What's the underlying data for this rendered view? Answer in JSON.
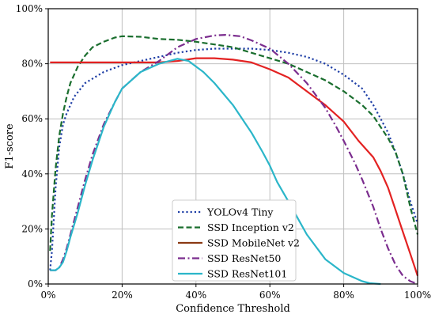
{
  "chart_data": {
    "type": "line",
    "title": "",
    "xlabel": "Confidence Threshold",
    "ylabel": "F1-score",
    "xlim": [
      0,
      100
    ],
    "ylim": [
      0,
      100
    ],
    "x_tick_values": [
      0,
      20,
      40,
      60,
      80,
      100
    ],
    "x_tick_labels": [
      "0%",
      "20%",
      "40%",
      "60%",
      "80%",
      "100%"
    ],
    "y_tick_values": [
      0,
      20,
      40,
      60,
      80,
      100
    ],
    "y_tick_labels": [
      "0%",
      "20%",
      "40%",
      "60%",
      "80%",
      "100%"
    ],
    "grid": true,
    "legend_position": "bottom-center",
    "series": [
      {
        "name": "YOLOv4 Tiny",
        "color": "#1f3fa6",
        "style": "dotted",
        "x": [
          0.5,
          1,
          2,
          3,
          4,
          5,
          7,
          10,
          15,
          20,
          25,
          30,
          35,
          40,
          45,
          50,
          55,
          60,
          65,
          70,
          75,
          80,
          85,
          88,
          90,
          92,
          94,
          96,
          98,
          100
        ],
        "y": [
          5,
          12,
          35,
          50,
          58,
          62,
          68,
          73,
          77,
          79.5,
          81,
          82.5,
          84,
          85,
          85.5,
          85.5,
          85.5,
          85,
          84,
          82.5,
          80,
          76,
          71,
          65,
          60,
          55,
          48,
          40,
          30,
          22
        ]
      },
      {
        "name": "SSD Inception v2",
        "color": "#1a6e2e",
        "style": "dashed",
        "x": [
          0.5,
          1,
          2,
          3,
          4,
          5,
          6,
          8,
          10,
          12,
          15,
          18,
          20,
          25,
          30,
          35,
          40,
          45,
          50,
          55,
          60,
          65,
          70,
          75,
          80,
          85,
          88,
          90,
          92,
          94,
          96,
          98,
          100
        ],
        "y": [
          12,
          25,
          42,
          54,
          62,
          68,
          73,
          79,
          83,
          86,
          88,
          89.5,
          90,
          89.8,
          89,
          88.7,
          88,
          87,
          86,
          84,
          82,
          80,
          77,
          74,
          70,
          65,
          61,
          57,
          53,
          48,
          40,
          28,
          18
        ]
      },
      {
        "name": "SSD MobileNet v2",
        "color": "#e32222",
        "legend_color": "#8b3a14",
        "style": "solid",
        "x": [
          0.5,
          5,
          10,
          15,
          20,
          25,
          30,
          35,
          40,
          45,
          50,
          55,
          60,
          65,
          70,
          75,
          80,
          84,
          88,
          90,
          92,
          94,
          96,
          98,
          100
        ],
        "y": [
          80.5,
          80.5,
          80.5,
          80.5,
          80.5,
          80.5,
          80.5,
          81,
          82,
          82,
          81.5,
          80.5,
          78,
          75,
          70,
          65,
          59,
          52,
          46,
          41,
          35,
          27,
          19,
          11,
          3
        ]
      },
      {
        "name": "SSD ResNet50",
        "color": "#7b2d8e",
        "style": "dashdot",
        "x": [
          0.5,
          2,
          3,
          4,
          5,
          6,
          8,
          10,
          12,
          15,
          18,
          20,
          25,
          30,
          35,
          40,
          45,
          48,
          52,
          55,
          60,
          65,
          70,
          75,
          78,
          80,
          83,
          85,
          88,
          90,
          92,
          94,
          96,
          98,
          100
        ],
        "y": [
          5,
          5,
          6,
          9,
          13,
          18,
          28,
          38,
          47,
          58,
          66,
          71,
          77,
          81,
          86,
          89,
          90.3,
          90.5,
          90,
          88.5,
          85.5,
          80,
          73,
          64,
          57,
          52,
          44,
          38,
          28,
          20,
          13,
          7,
          3,
          1,
          0
        ]
      },
      {
        "name": "SSD ResNet101",
        "color": "#2bb6c9",
        "style": "solid",
        "x": [
          0.5,
          2,
          3,
          4,
          5,
          6,
          8,
          10,
          12,
          15,
          18,
          20,
          25,
          30,
          35,
          38,
          40,
          42,
          45,
          50,
          55,
          58,
          60,
          62,
          65,
          70,
          75,
          80,
          85,
          87,
          90
        ],
        "y": [
          5,
          5,
          6,
          8,
          12,
          17,
          26,
          36,
          45,
          57,
          66,
          71,
          77,
          80,
          81.8,
          81,
          79,
          77,
          73,
          65,
          55,
          48,
          43,
          37,
          30,
          18,
          9,
          4,
          1,
          0.3,
          0
        ]
      }
    ]
  }
}
